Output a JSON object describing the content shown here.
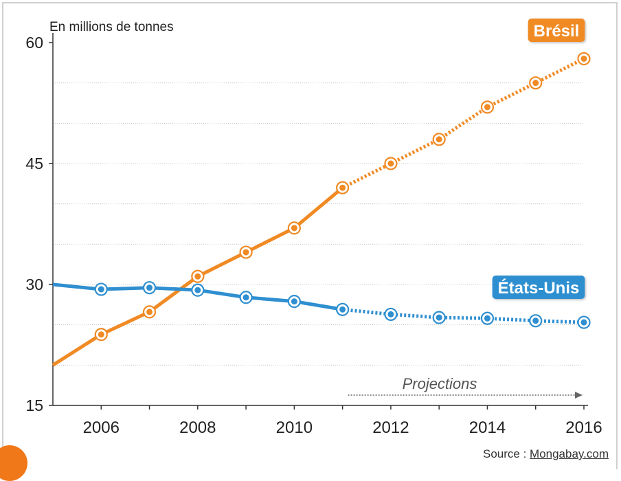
{
  "chart_data": {
    "type": "line",
    "ylabel": "En millions de tonnes",
    "xlim": [
      2005,
      2016
    ],
    "ylim": [
      15,
      60
    ],
    "x_ticks": [
      2006,
      2008,
      2010,
      2012,
      2014,
      2016
    ],
    "y_ticks": [
      15,
      30,
      45,
      60
    ],
    "grid_y": [
      20,
      25,
      30,
      35,
      40,
      45,
      50,
      55
    ],
    "projection_start": 2011,
    "projection_label": "Projections",
    "series": [
      {
        "name": "Brésil",
        "color": "#f08a24",
        "x": [
          2005,
          2006,
          2007,
          2008,
          2009,
          2010,
          2011,
          2012,
          2013,
          2014,
          2015,
          2016
        ],
        "values": [
          20,
          23.8,
          26.6,
          31,
          34,
          37,
          42,
          45,
          48,
          52,
          55,
          58
        ],
        "markers_from": 2006
      },
      {
        "name": "États-Unis",
        "color": "#2f8fd0",
        "x": [
          2005,
          2006,
          2007,
          2008,
          2009,
          2010,
          2011,
          2012,
          2013,
          2014,
          2015,
          2016
        ],
        "values": [
          30,
          29.4,
          29.6,
          29.3,
          28.4,
          27.9,
          26.9,
          26.3,
          25.9,
          25.8,
          25.5,
          25.3
        ],
        "markers_from": 2006
      }
    ]
  },
  "source": {
    "label": "Source :",
    "name": "Mongabay.com"
  }
}
